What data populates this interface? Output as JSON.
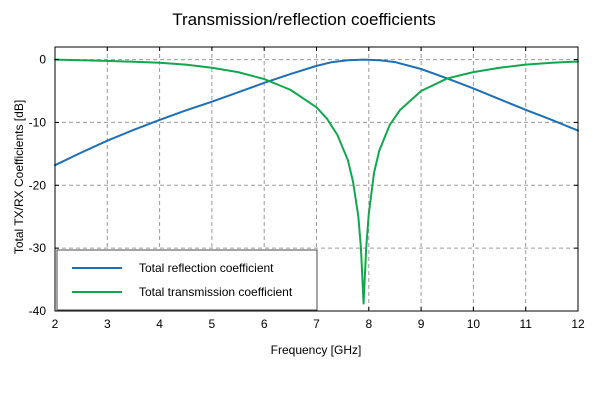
{
  "chart_data": {
    "type": "line",
    "title": "Transmission/reflection coefficients",
    "xlabel": "Frequency [GHz]",
    "ylabel": "Total TX/RX Coefficients [dB]",
    "xlim": [
      2,
      12
    ],
    "ylim": [
      -40,
      2
    ],
    "x_ticks": [
      2,
      3,
      4,
      5,
      6,
      7,
      8,
      9,
      10,
      11,
      12
    ],
    "y_ticks": [
      0,
      -10,
      -20,
      -30,
      -40
    ],
    "grid": true,
    "legend_position": "bottom-left",
    "series": [
      {
        "name": "Total reflection coefficient",
        "color": "#1f6fb5",
        "x": [
          2,
          2.5,
          3,
          3.5,
          4,
          4.5,
          5,
          5.5,
          6,
          6.5,
          7,
          7.3,
          7.6,
          7.9,
          8.2,
          8.5,
          9,
          9.5,
          10,
          10.5,
          11,
          11.5,
          12
        ],
        "y": [
          -16.8,
          -14.8,
          -12.9,
          -11.2,
          -9.6,
          -8.1,
          -6.7,
          -5.2,
          -3.7,
          -2.3,
          -1.0,
          -0.4,
          -0.1,
          0.0,
          -0.1,
          -0.4,
          -1.5,
          -3.0,
          -4.6,
          -6.3,
          -8.0,
          -9.6,
          -11.3
        ]
      },
      {
        "name": "Total transmission coefficient",
        "color": "#13a64f",
        "x": [
          2,
          3,
          4,
          4.5,
          5,
          5.5,
          6,
          6.5,
          7,
          7.2,
          7.4,
          7.6,
          7.7,
          7.8,
          7.85,
          7.9,
          7.95,
          8.0,
          8.1,
          8.2,
          8.4,
          8.6,
          9,
          9.5,
          10,
          10.5,
          11,
          11.5,
          12
        ],
        "y": [
          0.0,
          -0.2,
          -0.5,
          -0.8,
          -1.3,
          -2.0,
          -3.1,
          -4.8,
          -7.6,
          -9.4,
          -12.0,
          -16.0,
          -19.5,
          -25.0,
          -30.0,
          -38.8,
          -30.0,
          -24.5,
          -18.0,
          -14.5,
          -10.4,
          -8.0,
          -5.0,
          -3.0,
          -2.0,
          -1.3,
          -0.8,
          -0.5,
          -0.3
        ]
      }
    ]
  }
}
